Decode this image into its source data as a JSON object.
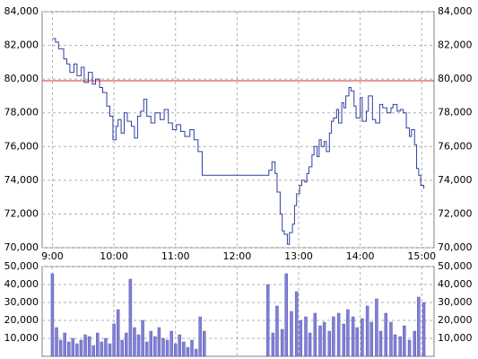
{
  "chart_data": [
    {
      "type": "line",
      "xlim": [
        530,
        912
      ],
      "xticks": [
        {
          "value": 540,
          "label": "9:00"
        },
        {
          "value": 600,
          "label": "10:00"
        },
        {
          "value": 660,
          "label": "11:00"
        },
        {
          "value": 720,
          "label": "12:00"
        },
        {
          "value": 780,
          "label": "13:00"
        },
        {
          "value": 840,
          "label": "14:00"
        },
        {
          "value": 900,
          "label": "15:00"
        }
      ],
      "ylim": [
        70000,
        84000
      ],
      "yticks": [
        {
          "value": 70000,
          "label": "70,000"
        },
        {
          "value": 72000,
          "label": "72,000"
        },
        {
          "value": 74000,
          "label": "74,000"
        },
        {
          "value": 76000,
          "label": "76,000"
        },
        {
          "value": 78000,
          "label": "78,000"
        },
        {
          "value": 80000,
          "label": "80,000"
        },
        {
          "value": 82000,
          "label": "82,000"
        },
        {
          "value": 84000,
          "label": "84,000"
        }
      ],
      "grid": true,
      "reference_line": 79900,
      "reference_color": "#e03030",
      "x": [
        540,
        543,
        546,
        551,
        554,
        557,
        561,
        564,
        568,
        571,
        575,
        579,
        582,
        586,
        589,
        593,
        596,
        599,
        602,
        604,
        607,
        610,
        613,
        617,
        620,
        623,
        626,
        629,
        632,
        636,
        640,
        645,
        649,
        653,
        657,
        661,
        665,
        669,
        674,
        678,
        682,
        686,
        751,
        754,
        757,
        759,
        762,
        764,
        766,
        769,
        771,
        774,
        776,
        778,
        781,
        783,
        786,
        788,
        790,
        793,
        795,
        798,
        800,
        802,
        805,
        807,
        810,
        812,
        814,
        817,
        819,
        822,
        824,
        826,
        829,
        831,
        834,
        836,
        840,
        842,
        846,
        848,
        852,
        855,
        859,
        862,
        866,
        870,
        872,
        876,
        879,
        882,
        885,
        888,
        890,
        893,
        895,
        897,
        899,
        902
      ],
      "series": [
        {
          "color": "#3040a0",
          "values": [
            82400,
            82200,
            81800,
            81200,
            80900,
            80400,
            80900,
            80200,
            80700,
            79800,
            80400,
            79700,
            80000,
            79500,
            79200,
            78400,
            77800,
            76400,
            77200,
            77600,
            76800,
            78000,
            77500,
            77200,
            76500,
            77800,
            78100,
            78800,
            77800,
            77400,
            78000,
            77600,
            78200,
            77400,
            77000,
            77300,
            76900,
            76600,
            77000,
            76400,
            75700,
            74300,
            74600,
            75100,
            74400,
            73300,
            72000,
            71000,
            70800,
            70200,
            70900,
            71400,
            72500,
            73200,
            73700,
            74000,
            73900,
            74400,
            74800,
            75500,
            76000,
            75400,
            76400,
            76000,
            76300,
            75700,
            76800,
            77500,
            77700,
            78200,
            77400,
            78600,
            78300,
            79000,
            79500,
            79300,
            78400,
            77700,
            78900,
            77500,
            78100,
            79000,
            77600,
            77400,
            78500,
            78300,
            78000,
            78300,
            78500,
            78100,
            78200,
            78000,
            77100,
            76600,
            77000,
            76100,
            74700,
            74300,
            73700,
            73500
          ]
        }
      ]
    },
    {
      "type": "bar",
      "xlim": [
        530,
        912
      ],
      "ylim": [
        0,
        50000
      ],
      "yticks": [
        {
          "value": 10000,
          "label": "10,000"
        },
        {
          "value": 20000,
          "label": "20,000"
        },
        {
          "value": 30000,
          "label": "30,000"
        },
        {
          "value": 40000,
          "label": "40,000"
        },
        {
          "value": 50000,
          "label": "50,000"
        }
      ],
      "grid": true,
      "color": "#8080d8",
      "x": [
        540,
        544,
        548,
        552,
        556,
        560,
        564,
        568,
        572,
        576,
        580,
        584,
        588,
        592,
        596,
        600,
        604,
        608,
        612,
        616,
        620,
        624,
        628,
        632,
        636,
        640,
        644,
        648,
        652,
        656,
        660,
        664,
        668,
        672,
        676,
        680,
        684,
        688,
        750,
        755,
        759,
        764,
        768,
        773,
        778,
        782,
        787,
        791,
        796,
        801,
        805,
        810,
        814,
        819,
        824,
        828,
        833,
        837,
        842,
        847,
        851,
        856,
        860,
        865,
        870,
        874,
        879,
        883,
        888,
        893,
        897,
        902
      ],
      "values": [
        46000,
        16000,
        9000,
        13000,
        8000,
        10000,
        7000,
        9000,
        12000,
        11000,
        6000,
        13000,
        8000,
        10000,
        7000,
        18000,
        26000,
        9000,
        13000,
        43000,
        16000,
        12000,
        20000,
        8000,
        14000,
        11000,
        16000,
        10000,
        9000,
        14000,
        7000,
        12000,
        8000,
        5000,
        9000,
        4000,
        22000,
        14000,
        40000,
        13000,
        28000,
        15000,
        46000,
        25000,
        36000,
        20000,
        22000,
        13000,
        24000,
        17000,
        19000,
        14000,
        22000,
        24000,
        18000,
        26000,
        22000,
        16000,
        21000,
        28000,
        19000,
        32000,
        14000,
        24000,
        19000,
        12000,
        11000,
        17000,
        9000,
        14000,
        33000,
        30000
      ]
    }
  ]
}
